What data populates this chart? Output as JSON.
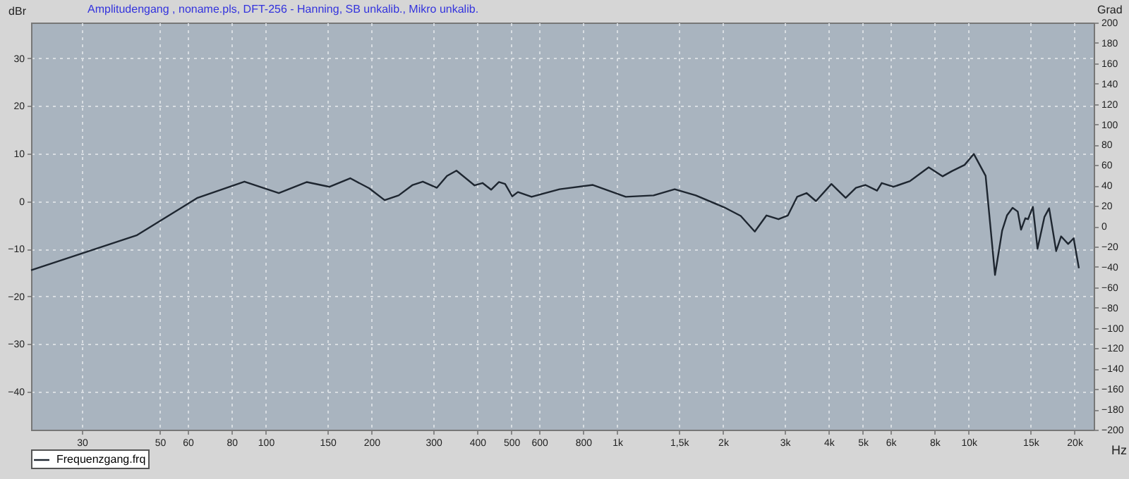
{
  "chart_data": {
    "type": "line",
    "title": "Amplitudengang , noname.pls, DFT-256 - Hanning, SB unkalib., Mikro unkalib.",
    "xlabel": "Hz",
    "ylabel": "dBr",
    "y2label": "Grad",
    "log": "x",
    "xlim": [
      21.5,
      22700
    ],
    "xticks": [
      30,
      50,
      {
        "value": 60,
        "label": "60"
      },
      80,
      100,
      150,
      200,
      300,
      400,
      500,
      600,
      800,
      {
        "value": 1000,
        "label": "1k"
      },
      {
        "value": 1500,
        "label": "1,5k"
      },
      {
        "value": 2000,
        "label": "2k"
      },
      {
        "value": 3000,
        "label": "3k"
      },
      {
        "value": 4000,
        "label": "4k"
      },
      {
        "value": 5000,
        "label": "5k"
      },
      {
        "value": 6000,
        "label": "6k"
      },
      {
        "value": 8000,
        "label": "8k"
      },
      {
        "value": 10000,
        "label": "10k"
      },
      {
        "value": 15000,
        "label": "15k"
      },
      {
        "value": 20000,
        "label": "20k"
      }
    ],
    "ylim": [
      -48,
      37.5
    ],
    "yticks": [
      -40,
      -30,
      -20,
      -10,
      0,
      10,
      20,
      30
    ],
    "y2lim": [
      -200,
      200
    ],
    "y2ticks": [
      -200,
      -180,
      -160,
      -140,
      -120,
      -100,
      -80,
      -60,
      -40,
      -20,
      0,
      20,
      40,
      60,
      80,
      100,
      120,
      140,
      160,
      180,
      200
    ],
    "grid": true,
    "legend": "bottom",
    "marker": "none",
    "line_style": "solid",
    "series": [
      {
        "name": "Frequenzgang.frq",
        "color": "#1e2630",
        "x": [
          21.5,
          42.9,
          64,
          87,
          109,
          131,
          152,
          174,
          197,
          218,
          239,
          262,
          280,
          307,
          328,
          349,
          393,
          414,
          438,
          461,
          480,
          503,
          522,
          571,
          686,
          853,
          1058,
          1270,
          1458,
          1674,
          2016,
          2247,
          2464,
          2661,
          2878,
          3061,
          3252,
          3459,
          3679,
          4071,
          4469,
          4780,
          5084,
          5489,
          5660,
          6110,
          6810,
          7700,
          8430,
          8970,
          9740,
          10350,
          11180,
          11890,
          12460,
          12860,
          13340,
          13800,
          14100,
          14500,
          14760,
          15240,
          15710,
          16440,
          16950,
          17750,
          18330,
          19200,
          19900,
          20600
        ],
        "values": [
          -14.5,
          -7.2,
          0.7,
          4.1,
          1.7,
          4.0,
          3.0,
          4.8,
          2.7,
          0.2,
          1.2,
          3.4,
          4.1,
          2.8,
          5.3,
          6.4,
          3.3,
          3.8,
          2.4,
          4.0,
          3.6,
          1.0,
          1.9,
          0.9,
          2.5,
          3.4,
          0.9,
          1.2,
          2.5,
          1.2,
          -1.3,
          -3.1,
          -6.4,
          -3.0,
          -3.8,
          -3.0,
          0.9,
          1.7,
          0.0,
          3.6,
          0.7,
          2.8,
          3.4,
          2.2,
          3.8,
          3.0,
          4.2,
          7.1,
          5.2,
          6.3,
          7.6,
          9.9,
          5.3,
          -15.5,
          -6.2,
          -3.0,
          -1.4,
          -2.2,
          -6.0,
          -3.6,
          -3.8,
          -1.2,
          -10.0,
          -3.3,
          -1.5,
          -10.5,
          -7.4,
          -9.0,
          -7.8,
          -14.1
        ]
      }
    ]
  }
}
